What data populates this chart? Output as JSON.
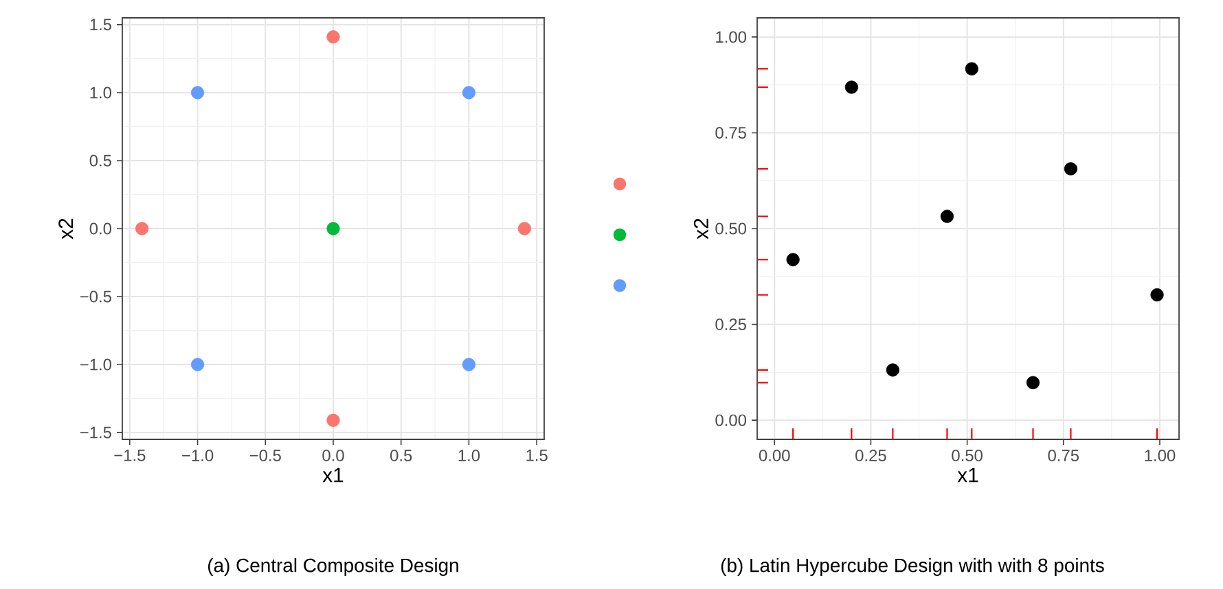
{
  "chart_data": [
    {
      "type": "scatter",
      "title": "(a) Central Composite Design",
      "xlabel": "x1",
      "ylabel": "x2",
      "grid": true,
      "xlim": [
        -1.555,
        1.555
      ],
      "ylim": [
        -1.55,
        1.55
      ],
      "xticks": [
        {
          "value": -1.5,
          "label": "−1.5"
        },
        {
          "value": -1.0,
          "label": "−1.0"
        },
        {
          "value": -0.5,
          "label": "−0.5"
        },
        {
          "value": 0,
          "label": "0.0"
        },
        {
          "value": 0.5,
          "label": "0.5"
        },
        {
          "value": 1.0,
          "label": "1.0"
        },
        {
          "value": 1.5,
          "label": "1.5"
        }
      ],
      "yticks": [
        {
          "value": -1.5,
          "label": "−1.5"
        },
        {
          "value": -1.0,
          "label": "−1.0"
        },
        {
          "value": -0.5,
          "label": "−0.5"
        },
        {
          "value": 0,
          "label": "0.0"
        },
        {
          "value": 0.5,
          "label": "0.5"
        },
        {
          "value": 1.0,
          "label": "1.0"
        },
        {
          "value": 1.5,
          "label": "1.5"
        }
      ],
      "series": [
        {
          "color": "#f8766d",
          "x": [
            -1.41,
            1.41,
            0,
            0
          ],
          "values": [
            0,
            0,
            -1.41,
            1.41
          ]
        },
        {
          "color": "#00ba38",
          "x": [
            0
          ],
          "values": [
            0
          ]
        },
        {
          "color": "#619cff",
          "x": [
            -1,
            1,
            -1,
            1
          ],
          "values": [
            -1,
            -1,
            1,
            1
          ]
        }
      ]
    },
    {
      "type": "scatter",
      "title": "(b) Latin Hypercube Design with with 8 points",
      "xlabel": "x1",
      "ylabel": "x2",
      "grid": true,
      "xlim": [
        -0.045,
        1.05
      ],
      "ylim": [
        -0.05,
        1.05
      ],
      "xticks": [
        {
          "value": 0,
          "label": "0.00"
        },
        0.25,
        {
          "value": 0.5,
          "label": "0.50"
        },
        0.75,
        {
          "value": 1,
          "label": "1.00"
        }
      ],
      "yticks": [
        {
          "value": 0,
          "label": "0.00"
        },
        0.25,
        {
          "value": 0.5,
          "label": "0.50"
        },
        0.75,
        {
          "value": 1,
          "label": "1.00"
        }
      ],
      "series": [
        {
          "color": "#000000",
          "x": [
            0.048,
            0.2,
            0.307,
            0.448,
            0.512,
            0.671,
            0.769,
            0.993
          ],
          "values": [
            0.419,
            0.869,
            0.131,
            0.532,
            0.917,
            0.098,
            0.656,
            0.327
          ]
        }
      ]
    }
  ]
}
